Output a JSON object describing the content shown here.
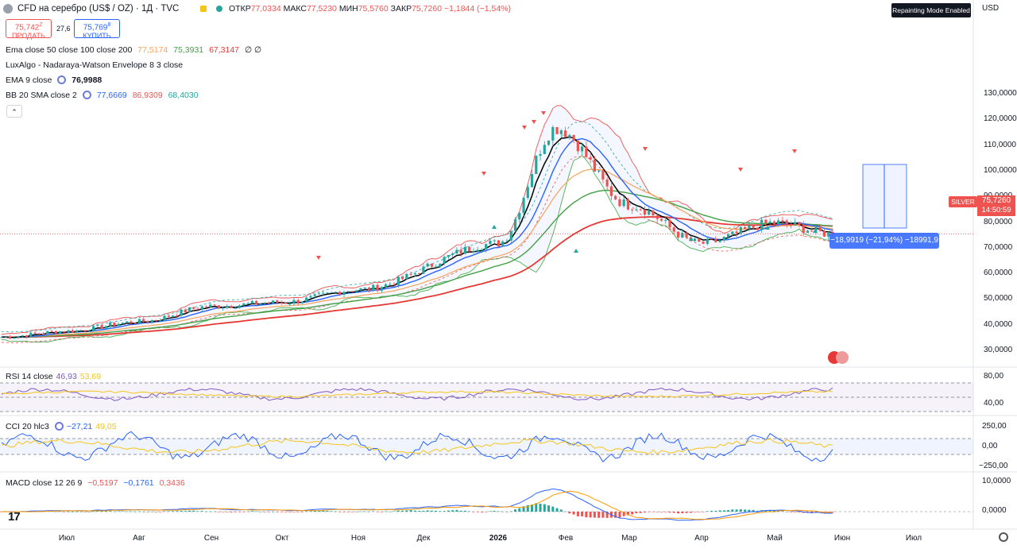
{
  "header": {
    "symbol": "CFD на серебро (US$ / OZ) · 1Д · TVC",
    "open_label": "ОТКР",
    "open_value": "77,0334",
    "high_label": "МАКС",
    "high_value": "77,5230",
    "low_label": "МИН",
    "low_value": "75,5760",
    "close_label": "ЗАКР",
    "close_value": "75,7260",
    "change": "−1,1844 (−1,54%)",
    "repaint_badge": "Repainting Mode Enabled",
    "currency": "USD"
  },
  "trade": {
    "sell_price": "75,742",
    "sell_price_sup": "2",
    "sell_label": "ПРОДАТЬ",
    "spread": "27,6",
    "buy_price": "75,769",
    "buy_price_sup": "8",
    "buy_label": "КУПИТЬ"
  },
  "legend": {
    "ema": {
      "name": "Ema close 50 close 100 close 200",
      "v1": "77,5174",
      "v2": "75,3931",
      "v3": "67,3147",
      "extra": "∅ ∅"
    },
    "luxalgo": {
      "name": "LuxAlgo - Nadaraya-Watson Envelope 8 3 close"
    },
    "ema9": {
      "name": "EMA 9 close",
      "v1": "76,9988"
    },
    "bb": {
      "name": "BB 20 SMA close 2",
      "v1": "77,6669",
      "v2": "86,9309",
      "v3": "68,4030"
    }
  },
  "price_axis": {
    "ticks": [
      "130,0000",
      "120,0000",
      "110,0000",
      "100,0000",
      "90,0000",
      "80,0000",
      "70,0000",
      "60,0000",
      "50,0000",
      "40,0000",
      "30,0000"
    ],
    "symbol_tag": "SILVER",
    "last_price": "75,7260",
    "countdown": "14:50:59"
  },
  "measure": {
    "label": "−18,9919 (−21,94%) −18991,9"
  },
  "rsi": {
    "name": "RSI 14 close",
    "v1": "46,93",
    "v2": "53,69",
    "ticks": [
      "80,00",
      "40,00"
    ]
  },
  "cci": {
    "name": "CCI 20 hlc3",
    "v1": "−27,21",
    "v2": "49,05",
    "ticks": [
      "250,00",
      "0,00",
      "−250,00"
    ]
  },
  "macd": {
    "name": "MACD close 12 26 9",
    "v1": "−0,5197",
    "v2": "−0,1761",
    "v3": "0,3436",
    "ticks": [
      "10,0000",
      "0,0000"
    ]
  },
  "time_axis": {
    "labels": [
      "Июл",
      "Авг",
      "Сен",
      "Окт",
      "Ноя",
      "Дек",
      "2026",
      "Фев",
      "Мар",
      "Апр",
      "Май",
      "Июн",
      "Июл"
    ]
  },
  "colors": {
    "up": "#26a69a",
    "down": "#ef5350",
    "ema50": "#f7a35c",
    "ema100": "#43a047",
    "ema200": "#e53935",
    "ema9": "#000000",
    "bb_basis": "#2962ff",
    "bb_upper": "#ef5350",
    "bb_lower": "#4caf50",
    "rsi": "#7e57c2",
    "cci": "#2962ff",
    "accent": "#2962ff"
  },
  "chart_data": [
    {
      "type": "candlestick",
      "title": "CFD на серебро (US$ / OZ) · 1Д · TVC",
      "x": [
        "Июл",
        "Авг",
        "Сен",
        "Окт",
        "Ноя",
        "Дек",
        "2026",
        "Фев",
        "Мар",
        "Апр",
        "Май",
        "Июн"
      ],
      "y_range": [
        30,
        130
      ],
      "series": [
        {
          "name": "SILVER",
          "values": [
            35.5,
            37.8,
            41.5,
            47.5,
            49,
            54,
            72,
            117,
            87,
            72,
            80,
            75.726
          ]
        },
        {
          "name": "EMA 9 close",
          "values": [
            35,
            37,
            40,
            46,
            48.5,
            53,
            71,
            104,
            88,
            74,
            79,
            76.9988
          ]
        },
        {
          "name": "Ema 50",
          "values": [
            34,
            36,
            38.5,
            42.5,
            45.5,
            50,
            63,
            79,
            83,
            80,
            78,
            77.5174
          ]
        },
        {
          "name": "Ema 100",
          "values": [
            33,
            34.5,
            37,
            40,
            43,
            46.5,
            56,
            68,
            73,
            74,
            75,
            75.3931
          ]
        },
        {
          "name": "Ema 200",
          "values": [
            31.5,
            33,
            34.5,
            36.5,
            39,
            41.5,
            47,
            56,
            61,
            64,
            66,
            67.3147
          ]
        }
      ]
    },
    {
      "type": "line",
      "title": "RSI 14 close",
      "y_range": [
        40,
        80
      ],
      "series": [
        {
          "name": "RSI",
          "last": 46.93
        },
        {
          "name": "RSI MA",
          "last": 53.69
        }
      ]
    },
    {
      "type": "line",
      "title": "CCI 20 hlc3",
      "y_range": [
        -250,
        250
      ],
      "series": [
        {
          "name": "CCI",
          "last": -27.21
        },
        {
          "name": "CCI MA",
          "last": 49.05
        }
      ]
    },
    {
      "type": "bar",
      "title": "MACD close 12 26 9",
      "y_range": [
        0,
        10
      ],
      "series": [
        {
          "name": "MACD",
          "last": -0.5197
        },
        {
          "name": "Signal",
          "last": -0.1761
        },
        {
          "name": "Histogram",
          "last": 0.3436
        }
      ]
    }
  ]
}
